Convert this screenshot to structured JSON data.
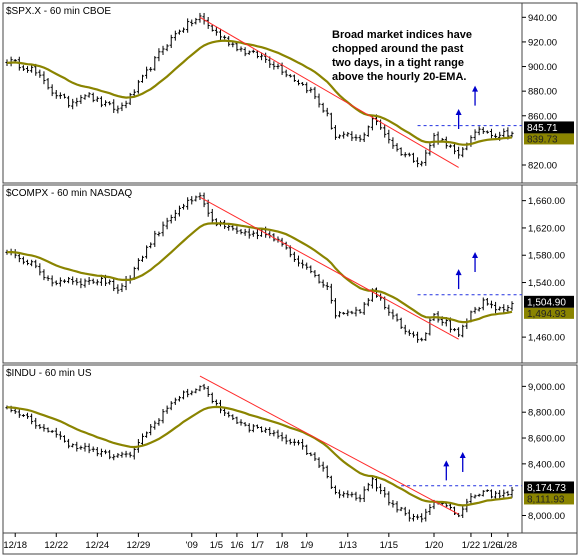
{
  "chart_data": {
    "type": "ohlc",
    "x_tick_labels": [
      "12/18",
      "12/22",
      "12/24",
      "12/29",
      "'09",
      "1/5",
      "1/6",
      "1/7",
      "1/8",
      "1/9",
      "1/13",
      "1/15",
      "1/20",
      "1/22",
      "1/26",
      "1/28"
    ],
    "annotation": [
      "Broad market indices have",
      "chopped around the past",
      "two days, in a tight range",
      "above the hourly 20-EMA."
    ],
    "colors": {
      "price_bars": "#000000",
      "ema": "#8a8400",
      "trendline": "#ff2a2a",
      "range_line": "#2030e0",
      "arrows": "#0000cc"
    },
    "panels": [
      {
        "title": "$SPX.X - 60 min  CBOE",
        "y_ticks": [
          "940.00",
          "920.00",
          "900.00",
          "880.00",
          "860.00",
          "820.00"
        ],
        "y_tick_values": [
          940,
          920,
          900,
          880,
          860,
          820
        ],
        "last_price": "845.71",
        "ema_value": "839.73",
        "ylim": [
          807,
          950
        ],
        "anchors": [
          [
            0,
            905
          ],
          [
            6,
            898
          ],
          [
            11,
            880
          ],
          [
            15,
            870
          ],
          [
            19,
            878
          ],
          [
            23,
            870
          ],
          [
            27,
            865
          ],
          [
            30,
            875
          ],
          [
            34,
            895
          ],
          [
            38,
            915
          ],
          [
            42,
            930
          ],
          [
            47,
            940
          ],
          [
            50,
            930
          ],
          [
            54,
            920
          ],
          [
            58,
            912
          ],
          [
            62,
            908
          ],
          [
            66,
            900
          ],
          [
            70,
            890
          ],
          [
            74,
            880
          ],
          [
            78,
            860
          ],
          [
            80,
            843
          ],
          [
            83,
            843
          ],
          [
            86,
            840
          ],
          [
            89,
            858
          ],
          [
            92,
            846
          ],
          [
            95,
            832
          ],
          [
            98,
            827
          ],
          [
            101,
            822
          ],
          [
            104,
            843
          ],
          [
            107,
            838
          ],
          [
            110,
            826
          ],
          [
            113,
            844
          ],
          [
            116,
            848
          ],
          [
            119,
            845
          ],
          [
            122,
            846
          ]
        ],
        "trendline": [
          [
            47,
            940
          ],
          [
            110,
            818
          ]
        ],
        "range_line": {
          "from": 100,
          "value": 852
        },
        "arrows": [
          [
            110,
            859
          ],
          [
            114,
            878
          ]
        ]
      },
      {
        "title": "$COMPX - 60 min  NASDAQ",
        "y_ticks": [
          "1,660.00",
          "1,620.00",
          "1,580.00",
          "1,540.00",
          "1,460.00"
        ],
        "y_tick_values": [
          1660,
          1620,
          1580,
          1540,
          1460
        ],
        "last_price": "1,504.90",
        "ema_value": "1,494.93",
        "ylim": [
          1425,
          1680
        ],
        "anchors": [
          [
            0,
            1588
          ],
          [
            6,
            1566
          ],
          [
            11,
            1540
          ],
          [
            15,
            1545
          ],
          [
            19,
            1540
          ],
          [
            23,
            1545
          ],
          [
            27,
            1530
          ],
          [
            30,
            1550
          ],
          [
            34,
            1590
          ],
          [
            38,
            1625
          ],
          [
            42,
            1650
          ],
          [
            47,
            1665
          ],
          [
            50,
            1630
          ],
          [
            54,
            1618
          ],
          [
            58,
            1610
          ],
          [
            62,
            1614
          ],
          [
            66,
            1600
          ],
          [
            70,
            1575
          ],
          [
            74,
            1560
          ],
          [
            78,
            1530
          ],
          [
            80,
            1495
          ],
          [
            83,
            1498
          ],
          [
            86,
            1500
          ],
          [
            89,
            1527
          ],
          [
            92,
            1508
          ],
          [
            95,
            1484
          ],
          [
            98,
            1467
          ],
          [
            101,
            1457
          ],
          [
            104,
            1493
          ],
          [
            107,
            1480
          ],
          [
            110,
            1460
          ],
          [
            113,
            1495
          ],
          [
            116,
            1510
          ],
          [
            119,
            1500
          ],
          [
            122,
            1505
          ]
        ],
        "trendline": [
          [
            47,
            1665
          ],
          [
            110,
            1457
          ]
        ],
        "range_line": {
          "from": 100,
          "value": 1522
        },
        "arrows": [
          [
            110,
            1548
          ],
          [
            114,
            1573
          ]
        ]
      },
      {
        "title": "$INDU - 60 min  US",
        "y_ticks": [
          "9,000.00",
          "8,800.00",
          "8,600.00",
          "8,400.00",
          "8,000.00"
        ],
        "y_tick_values": [
          9000,
          8800,
          8600,
          8400,
          8000
        ],
        "last_price": "8,174.73",
        "ema_value": "8,111.93",
        "ylim": [
          7880,
          9150
        ],
        "anchors": [
          [
            0,
            8820
          ],
          [
            6,
            8730
          ],
          [
            11,
            8640
          ],
          [
            15,
            8560
          ],
          [
            19,
            8520
          ],
          [
            23,
            8480
          ],
          [
            27,
            8450
          ],
          [
            30,
            8480
          ],
          [
            34,
            8640
          ],
          [
            38,
            8800
          ],
          [
            42,
            8920
          ],
          [
            47,
            9000
          ],
          [
            50,
            8900
          ],
          [
            54,
            8760
          ],
          [
            58,
            8690
          ],
          [
            62,
            8660
          ],
          [
            66,
            8620
          ],
          [
            70,
            8560
          ],
          [
            74,
            8480
          ],
          [
            78,
            8300
          ],
          [
            80,
            8160
          ],
          [
            83,
            8180
          ],
          [
            86,
            8140
          ],
          [
            89,
            8280
          ],
          [
            92,
            8150
          ],
          [
            95,
            8060
          ],
          [
            98,
            8000
          ],
          [
            101,
            7980
          ],
          [
            104,
            8120
          ],
          [
            107,
            8060
          ],
          [
            110,
            8000
          ],
          [
            113,
            8150
          ],
          [
            116,
            8180
          ],
          [
            119,
            8160
          ],
          [
            122,
            8175
          ]
        ],
        "trendline": [
          [
            47,
            9080
          ],
          [
            110,
            8010
          ]
        ],
        "range_line": {
          "from": 96,
          "value": 8230
        },
        "arrows": [
          [
            107,
            8365
          ],
          [
            111,
            8430
          ]
        ]
      }
    ]
  }
}
